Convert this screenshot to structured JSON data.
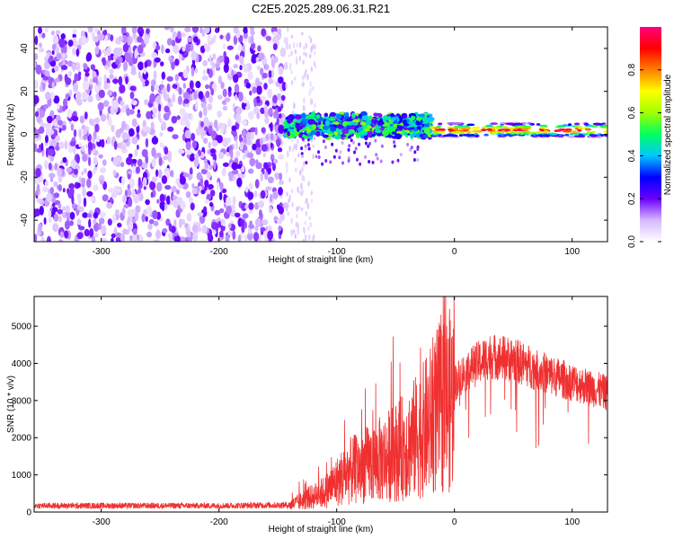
{
  "title": "C2E5.2025.289.06.31.R21",
  "chart_data": [
    {
      "type": "heatmap",
      "xlabel": "Height of straight line (km)",
      "ylabel": "Frequency (Hz)",
      "xlim": [
        -357,
        130
      ],
      "ylim": [
        -50,
        50
      ],
      "xticks": [
        -300,
        -200,
        -100,
        0,
        100
      ],
      "yticks": [
        -40,
        -20,
        0,
        20,
        40
      ],
      "colorbar": {
        "label": "Normalized spectral amplitude",
        "range": [
          0,
          1
        ],
        "ticks": [
          "0.0",
          "0.2",
          "0.4",
          "0.6",
          "0.8"
        ],
        "colors": [
          "#ffffff",
          "#d6b8ff",
          "#6a00ff",
          "#0000ff",
          "#00c8ff",
          "#00ff60",
          "#a0ff00",
          "#ffff00",
          "#ff8000",
          "#ff0000",
          "#ff0080"
        ]
      },
      "regions": [
        {
          "x_from": -357,
          "x_to": -143,
          "freq_from": -50,
          "freq_to": 50,
          "description_value": 0.1
        },
        {
          "x_from": -143,
          "x_to": -20,
          "freq_center": 4,
          "freq_halfwidth": 5,
          "description_value": 0.35
        },
        {
          "x_from": -20,
          "x_to": 130,
          "freq_center": 2,
          "freq_halfwidth": 1.5,
          "description_value": 0.8
        }
      ]
    },
    {
      "type": "line",
      "xlabel": "Height of straight line (km)",
      "ylabel": "SNR (10 * v/v)",
      "xlim": [
        -357,
        130
      ],
      "ylim": [
        0,
        5800
      ],
      "xticks": [
        -300,
        -200,
        -100,
        0,
        100
      ],
      "yticks": [
        0,
        1000,
        2000,
        3000,
        4000,
        5000
      ],
      "color": "#f03030",
      "envelope": [
        {
          "x": -357,
          "y": 180
        },
        {
          "x": -200,
          "y": 180
        },
        {
          "x": -140,
          "y": 200
        },
        {
          "x": -110,
          "y": 600
        },
        {
          "x": -90,
          "y": 1200
        },
        {
          "x": -60,
          "y": 1600
        },
        {
          "x": -40,
          "y": 2000
        },
        {
          "x": -25,
          "y": 2500
        },
        {
          "x": -15,
          "y": 3000
        },
        {
          "x": -5,
          "y": 3300
        },
        {
          "x": 10,
          "y": 3800
        },
        {
          "x": 30,
          "y": 4200
        },
        {
          "x": 50,
          "y": 4100
        },
        {
          "x": 80,
          "y": 3700
        },
        {
          "x": 110,
          "y": 3400
        },
        {
          "x": 130,
          "y": 3200
        }
      ]
    }
  ]
}
